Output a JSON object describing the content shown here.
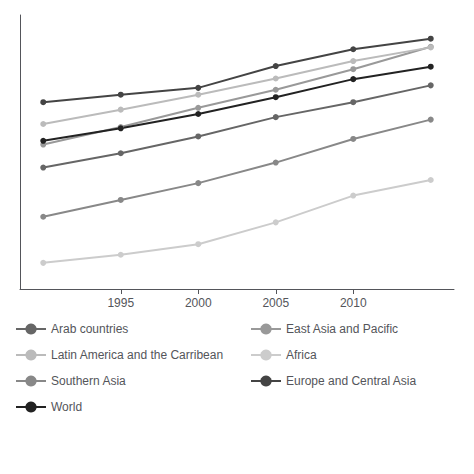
{
  "chart_data": {
    "type": "line",
    "x": [
      1990,
      1995,
      2000,
      2005,
      2010,
      2015
    ],
    "series": [
      {
        "name": "Arab countries",
        "color": "#666666",
        "values": [
          0.555,
          0.578,
          0.605,
          0.636,
          0.66,
          0.687
        ]
      },
      {
        "name": "East Asia and Pacific",
        "color": "#999999",
        "values": [
          0.592,
          0.62,
          0.651,
          0.68,
          0.713,
          0.749
        ]
      },
      {
        "name": "Latin America and the Carribean",
        "color": "#bbbbbb",
        "values": [
          0.625,
          0.648,
          0.672,
          0.698,
          0.726,
          0.748
        ]
      },
      {
        "name": "Africa",
        "color": "#cccccc",
        "values": [
          0.402,
          0.415,
          0.432,
          0.467,
          0.51,
          0.535
        ]
      },
      {
        "name": "Southern Asia",
        "color": "#888888",
        "values": [
          0.476,
          0.503,
          0.53,
          0.563,
          0.601,
          0.632
        ]
      },
      {
        "name": "Europe and Central Asia",
        "color": "#444444",
        "values": [
          0.66,
          0.672,
          0.683,
          0.718,
          0.745,
          0.762
        ]
      },
      {
        "name": "World",
        "color": "#222222",
        "values": [
          0.598,
          0.618,
          0.641,
          0.668,
          0.697,
          0.717
        ]
      }
    ],
    "xlim": [
      1988.5,
      2016.5
    ],
    "xticks": [
      1995,
      2000,
      2005,
      2010
    ],
    "ylim": [
      0.36,
      0.8
    ],
    "yticks": [],
    "tick_labels": "x",
    "grid": false,
    "marker": "circle"
  }
}
